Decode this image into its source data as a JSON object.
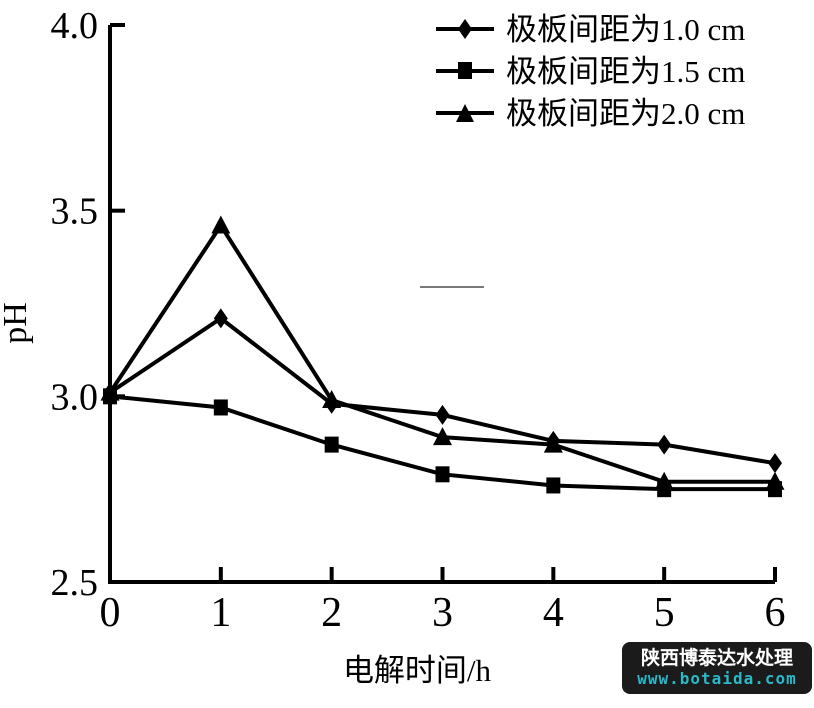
{
  "watermark": {
    "line1": "陕西博泰达水处理",
    "line2": "www.botaida.com",
    "bg_color": "#1b1b1b",
    "line1_color": "#ffffff",
    "line2_color": "#29b9c8"
  },
  "chart_data": {
    "type": "line",
    "title": "",
    "xlabel": "电解时间/h",
    "ylabel": "pH",
    "x": [
      0,
      1,
      2,
      3,
      4,
      5,
      6
    ],
    "xlim": [
      0,
      6
    ],
    "ylim": [
      2.5,
      4.0
    ],
    "x_ticks": [
      "0",
      "1",
      "2",
      "3",
      "4",
      "5",
      "6"
    ],
    "y_ticks": [
      "2.5",
      "3.0",
      "3.5",
      "4.0"
    ],
    "grid": false,
    "legend_position": "top-right-inside",
    "line_color": "#000000",
    "series": [
      {
        "name": "极板间距为1.0 cm",
        "marker": "diamond",
        "values": [
          3.01,
          3.21,
          2.98,
          2.95,
          2.88,
          2.87,
          2.82
        ]
      },
      {
        "name": "极板间距为1.5 cm",
        "marker": "square",
        "values": [
          3.0,
          2.97,
          2.87,
          2.79,
          2.76,
          2.75,
          2.75
        ]
      },
      {
        "name": "极板间距为2.0 cm",
        "marker": "triangle",
        "values": [
          3.01,
          3.46,
          2.99,
          2.89,
          2.87,
          2.77,
          2.77
        ]
      }
    ]
  }
}
